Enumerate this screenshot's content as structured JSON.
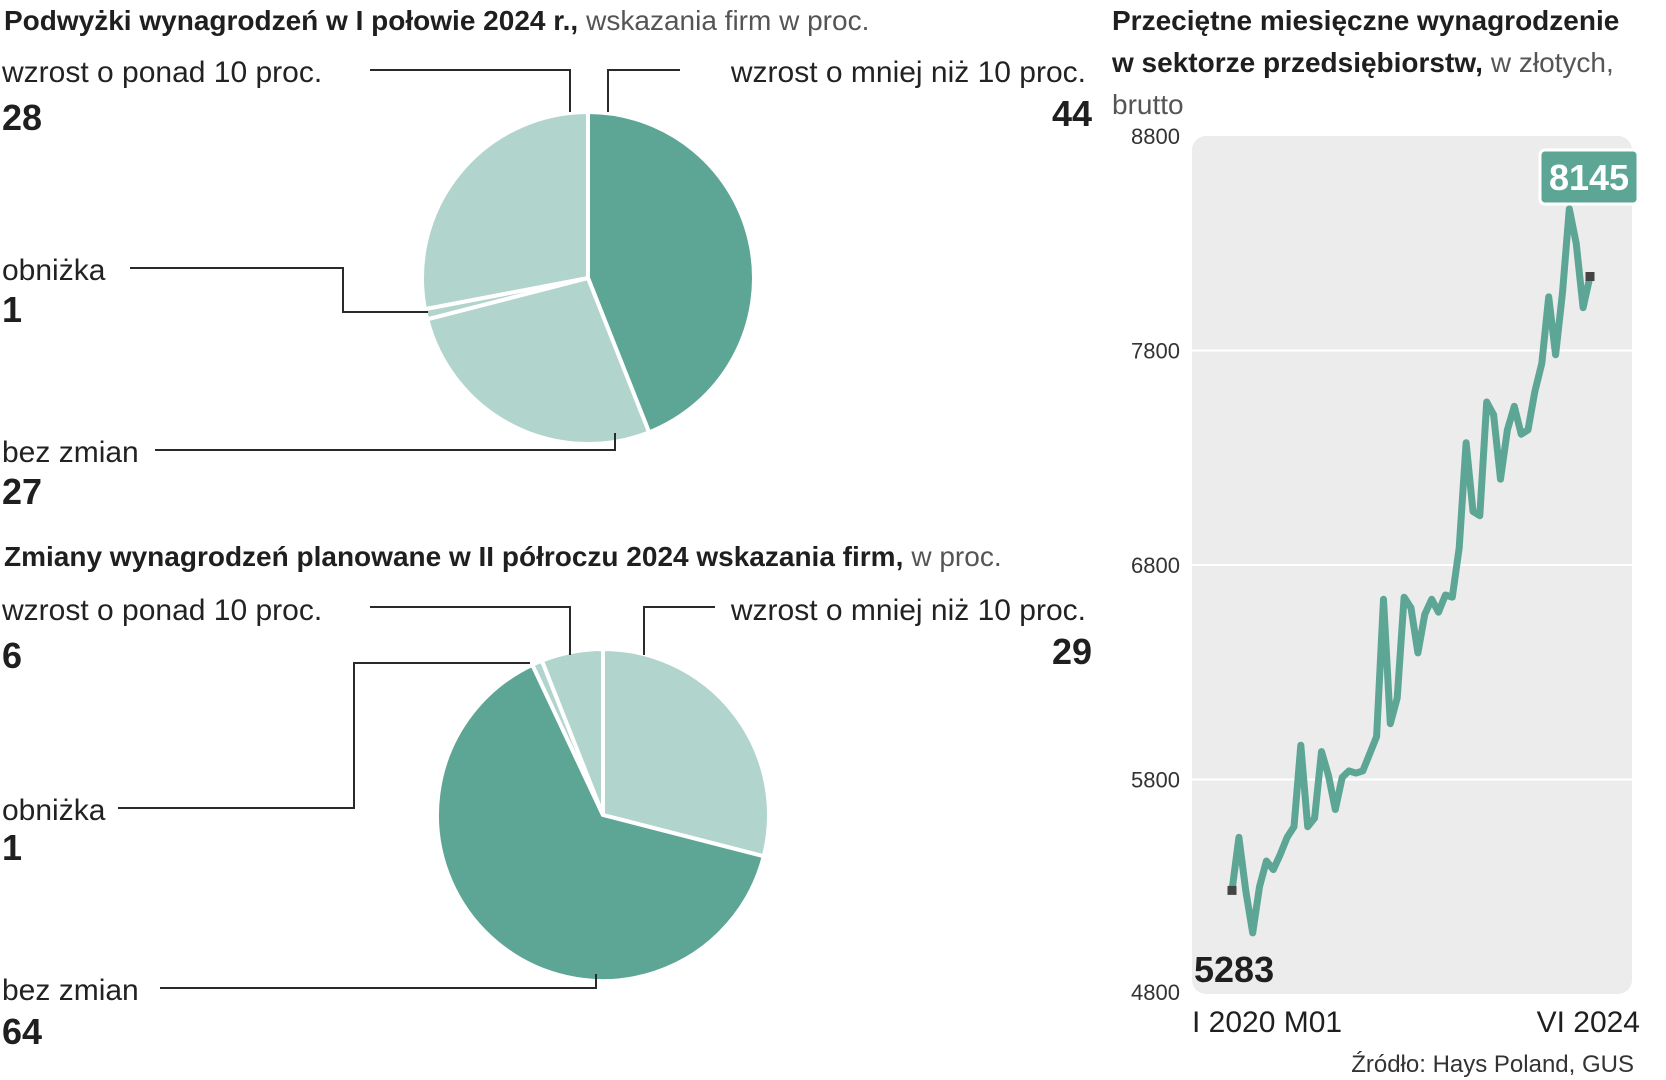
{
  "colors": {
    "dark": "#5da696",
    "light": "#b1d4cc",
    "panel": "#ececec",
    "line": "#5da696"
  },
  "chart_data": [
    {
      "type": "pie",
      "title": "Podwyżki wynagrodzeń w I połowie 2024 r.,",
      "subtitle": "wskazania firm w proc.",
      "slices": [
        {
          "label": "wzrost o mniej niż 10 proc.",
          "value": 44,
          "color": "dark"
        },
        {
          "label": "bez zmian",
          "value": 27,
          "color": "light"
        },
        {
          "label": "obniżka",
          "value": 1,
          "color": "light"
        },
        {
          "label": "wzrost o ponad 10 proc.",
          "value": 28,
          "color": "light"
        }
      ]
    },
    {
      "type": "pie",
      "title": "Zmiany wynagrodzeń planowane w II półroczu 2024  wskazania firm,",
      "subtitle": "w proc.",
      "slices": [
        {
          "label": "wzrost o mniej niż 10 proc.",
          "value": 29,
          "color": "light"
        },
        {
          "label": "bez zmian",
          "value": 64,
          "color": "dark"
        },
        {
          "label": "obniżka",
          "value": 1,
          "color": "light"
        },
        {
          "label": "wzrost o ponad 10 proc.",
          "value": 6,
          "color": "light"
        }
      ]
    },
    {
      "type": "line",
      "title_line1": "Przeciętne miesięczne wynagrodzenie",
      "title_line2": "w sektorze przedsiębiorstw,",
      "title_line2_suffix": "w złotych,",
      "title_line3": "brutto",
      "ylim": [
        4800,
        8800
      ],
      "yticks": [
        4800,
        5800,
        6800,
        7800,
        8800
      ],
      "x_start_label": "I 2020 M01",
      "x_end_label": "VI 2024",
      "start_label": "5283",
      "end_label": "8145",
      "grid": true,
      "series": [
        {
          "values": [
            5283,
            5530,
            5280,
            5085,
            5300,
            5420,
            5380,
            5450,
            5530,
            5580,
            5960,
            5580,
            5620,
            5930,
            5820,
            5660,
            5810,
            5840,
            5830,
            5840,
            5920,
            6000,
            6640,
            6060,
            6180,
            6650,
            6600,
            6390,
            6570,
            6640,
            6580,
            6660,
            6650,
            6880,
            7370,
            7050,
            7030,
            7560,
            7500,
            7200,
            7430,
            7540,
            7410,
            7430,
            7610,
            7740,
            8050,
            7780,
            8070,
            8460,
            8300,
            8000,
            8145
          ]
        }
      ]
    }
  ],
  "source": "Źródło: Hays Poland, GUS"
}
